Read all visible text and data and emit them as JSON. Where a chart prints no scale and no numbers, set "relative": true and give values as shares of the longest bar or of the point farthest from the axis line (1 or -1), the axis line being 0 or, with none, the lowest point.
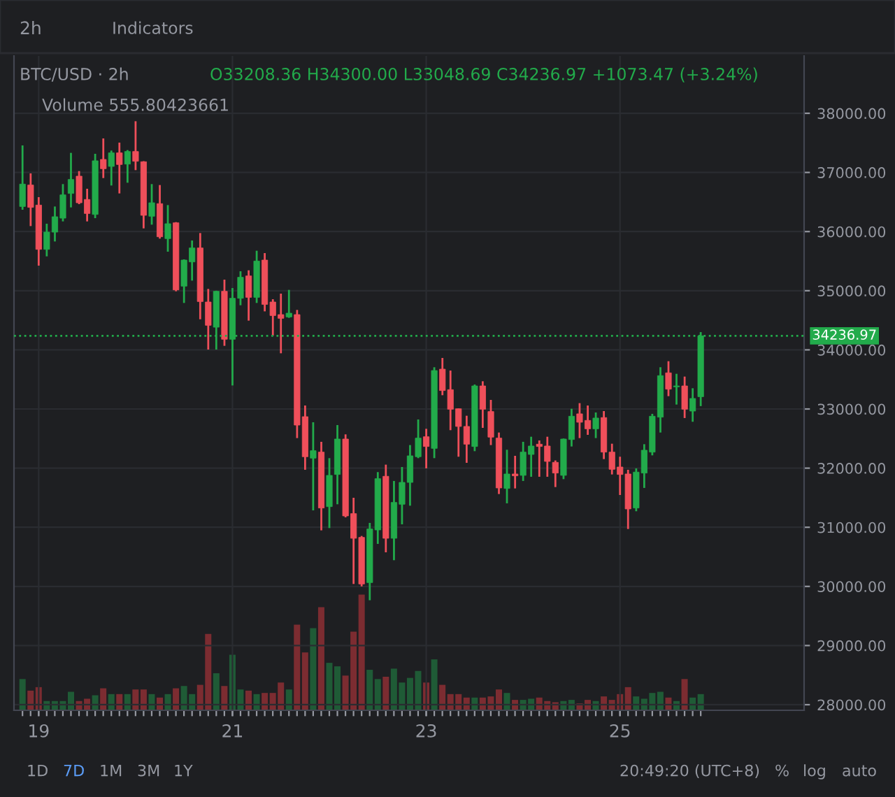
{
  "chart_data": [
    {
      "type": "candlestick",
      "title": "BTC/USD · 2h",
      "subtitle": "O33208.36 H34300.00 L33048.69 C34236.97 +1073.47 (+3.24%)",
      "annotations": [
        "Volume 555.80423661",
        "2h",
        "Indicators",
        "1D",
        "7D",
        "1M",
        "3M",
        "1Y",
        "20:49:20 (UTC+8)",
        "%",
        "log",
        "auto"
      ],
      "x": [
        18.833,
        18.917,
        19,
        19.083,
        19.167,
        19.25,
        19.333,
        19.417,
        19.5,
        19.583,
        19.667,
        19.75,
        19.833,
        19.917,
        20,
        20.083,
        20.167,
        20.25,
        20.333,
        20.417,
        20.5,
        20.583,
        20.667,
        20.75,
        20.833,
        20.917,
        21,
        21.083,
        21.167,
        21.25,
        21.333,
        21.417,
        21.5,
        21.583,
        21.667,
        21.75,
        21.833,
        21.917,
        22,
        22.083,
        22.167,
        22.25,
        22.333,
        22.417,
        22.5,
        22.583,
        22.667,
        22.75,
        22.833,
        22.917,
        23,
        23.083,
        23.167,
        23.25,
        23.333,
        23.417,
        23.5,
        23.583,
        23.667,
        23.75,
        23.833,
        23.917,
        24,
        24.083,
        24.167,
        24.25,
        24.333,
        24.417,
        24.5,
        24.583,
        24.667,
        24.75,
        24.833,
        24.917,
        25,
        25.083,
        25.167,
        25.25,
        25.333,
        25.417,
        25.5,
        25.583,
        25.667,
        25.75,
        25.833
      ],
      "ohlc": [
        [
          36424,
          37457,
          36369,
          36803
        ],
        [
          36787,
          36984,
          36093,
          36409
        ],
        [
          36448,
          36582,
          35424,
          35699
        ],
        [
          35699,
          36133,
          35581,
          35991
        ],
        [
          35991,
          36424,
          35833,
          36251
        ],
        [
          36227,
          36803,
          36172,
          36621
        ],
        [
          36645,
          37331,
          36409,
          36881
        ],
        [
          36937,
          37023,
          36464,
          36487
        ],
        [
          36543,
          36724,
          36172,
          36306
        ],
        [
          36290,
          37315,
          36227,
          37197
        ],
        [
          37220,
          37575,
          36905,
          37063
        ],
        [
          37102,
          37370,
          36779,
          37331
        ],
        [
          37331,
          37504,
          36645,
          37134
        ],
        [
          37141,
          37378,
          36826,
          37354
        ],
        [
          37354,
          37866,
          37039,
          37189
        ],
        [
          37181,
          37190,
          36054,
          36275
        ],
        [
          36259,
          36803,
          36117,
          36487
        ],
        [
          36472,
          36787,
          35881,
          35912
        ],
        [
          35881,
          36448,
          35660,
          36133
        ],
        [
          36149,
          36160,
          34990,
          35014
        ],
        [
          35077,
          35530,
          34793,
          35518
        ],
        [
          35487,
          35849,
          35171,
          35723
        ],
        [
          35723,
          35975,
          34517,
          34817
        ],
        [
          34809,
          35030,
          34005,
          34415
        ],
        [
          34383,
          35000,
          34005,
          34990
        ],
        [
          34990,
          35187,
          34068,
          34179
        ],
        [
          34179,
          35045,
          33398,
          34872
        ],
        [
          34872,
          35329,
          34754,
          35227
        ],
        [
          35250,
          35345,
          34494,
          34888
        ],
        [
          34888,
          35676,
          34793,
          35502
        ],
        [
          35518,
          35636,
          34651,
          34769
        ],
        [
          34809,
          34856,
          34241,
          34580
        ],
        [
          34596,
          34951,
          33942,
          34533
        ],
        [
          34557,
          35014,
          34541,
          34620
        ],
        [
          34596,
          34675,
          32508,
          32728
        ],
        [
          32870,
          33059,
          31972,
          32193
        ],
        [
          32169,
          32776,
          31286,
          32295
        ],
        [
          32271,
          32445,
          30948,
          31326
        ],
        [
          31349,
          32169,
          30987,
          31877
        ],
        [
          31893,
          32728,
          31389,
          32492
        ],
        [
          32492,
          32571,
          31168,
          31192
        ],
        [
          31231,
          31499,
          30041,
          30814
        ],
        [
          30829,
          30853,
          30000,
          30041
        ],
        [
          30065,
          31074,
          29766,
          30971
        ],
        [
          30955,
          31933,
          30719,
          31822
        ],
        [
          31862,
          32059,
          30577,
          30814
        ],
        [
          30814,
          31783,
          30443,
          31420
        ],
        [
          31389,
          32019,
          31050,
          31759
        ],
        [
          31759,
          32390,
          31365,
          32208
        ],
        [
          32193,
          32823,
          32169,
          32508
        ],
        [
          32531,
          32665,
          31996,
          32366
        ],
        [
          32334,
          33706,
          32169,
          33650
        ],
        [
          33674,
          33863,
          33233,
          33312
        ],
        [
          33327,
          33650,
          32642,
          32996
        ],
        [
          33004,
          33010,
          32193,
          32705
        ],
        [
          32705,
          32886,
          32090,
          32405
        ],
        [
          32366,
          33414,
          32287,
          33390
        ],
        [
          33390,
          33469,
          32681,
          32996
        ],
        [
          32957,
          33154,
          32390,
          32524
        ],
        [
          32508,
          32602,
          31562,
          31665
        ],
        [
          31657,
          32311,
          31405,
          31901
        ],
        [
          31901,
          32208,
          31657,
          31870
        ],
        [
          31878,
          32445,
          31783,
          32271
        ],
        [
          32232,
          32531,
          31854,
          32374
        ],
        [
          32405,
          32468,
          31854,
          32366
        ],
        [
          32374,
          32531,
          31854,
          32114
        ],
        [
          32098,
          32130,
          31680,
          31917
        ],
        [
          31878,
          32500,
          31814,
          32492
        ],
        [
          32484,
          33004,
          32366,
          32878
        ],
        [
          32918,
          33099,
          32508,
          32776
        ],
        [
          32807,
          33059,
          32563,
          32665
        ],
        [
          32665,
          32941,
          32508,
          32847
        ],
        [
          32855,
          32965,
          32153,
          32271
        ],
        [
          32271,
          32413,
          31893,
          31980
        ],
        [
          32019,
          32193,
          31546,
          31893
        ],
        [
          31901,
          31972,
          30971,
          31310
        ],
        [
          31326,
          31996,
          31271,
          31933
        ],
        [
          31917,
          32405,
          31665,
          32303
        ],
        [
          32271,
          32918,
          32216,
          32878
        ],
        [
          32862,
          33706,
          32602,
          33564
        ],
        [
          33611,
          33808,
          33217,
          33335
        ],
        [
          33375,
          33595,
          33075,
          33390
        ],
        [
          33390,
          33548,
          32847,
          32996
        ],
        [
          32965,
          33351,
          32784,
          33178
        ],
        [
          33208.36,
          34300.0,
          33048.69,
          34236.97
        ]
      ],
      "colors": [
        "#22ab4b",
        "#ef4f5a",
        "#ef4f5a",
        "#22ab4b",
        "#22ab4b",
        "#22ab4b",
        "#22ab4b",
        "#ef4f5a",
        "#ef4f5a",
        "#22ab4b",
        "#ef4f5a",
        "#22ab4b",
        "#ef4f5a",
        "#22ab4b",
        "#ef4f5a",
        "#ef4f5a",
        "#22ab4b",
        "#ef4f5a",
        "#22ab4b",
        "#ef4f5a",
        "#22ab4b",
        "#22ab4b",
        "#ef4f5a",
        "#ef4f5a",
        "#22ab4b",
        "#ef4f5a",
        "#22ab4b",
        "#22ab4b",
        "#ef4f5a",
        "#22ab4b",
        "#ef4f5a",
        "#ef4f5a",
        "#ef4f5a",
        "#22ab4b",
        "#ef4f5a",
        "#ef4f5a",
        "#22ab4b",
        "#ef4f5a",
        "#22ab4b",
        "#22ab4b",
        "#ef4f5a",
        "#ef4f5a",
        "#ef4f5a",
        "#22ab4b",
        "#22ab4b",
        "#ef4f5a",
        "#22ab4b",
        "#22ab4b",
        "#22ab4b",
        "#22ab4b",
        "#ef4f5a",
        "#22ab4b",
        "#ef4f5a",
        "#ef4f5a",
        "#ef4f5a",
        "#ef4f5a",
        "#22ab4b",
        "#ef4f5a",
        "#ef4f5a",
        "#ef4f5a",
        "#22ab4b",
        "#ef4f5a",
        "#22ab4b",
        "#22ab4b",
        "#ef4f5a",
        "#ef4f5a",
        "#ef4f5a",
        "#22ab4b",
        "#22ab4b",
        "#ef4f5a",
        "#ef4f5a",
        "#22ab4b",
        "#ef4f5a",
        "#ef4f5a",
        "#ef4f5a",
        "#ef4f5a",
        "#22ab4b",
        "#22ab4b",
        "#22ab4b",
        "#22ab4b",
        "#ef4f5a",
        "#22ab4b",
        "#ef4f5a",
        "#22ab4b",
        "#22ab4b"
      ],
      "xlim": [
        18.745,
        26.9
      ],
      "xticks": [
        19,
        21,
        23,
        25
      ],
      "ylim": [
        27905,
        38970
      ],
      "yticks": [
        {
          "value": 28000,
          "label": "28000.00"
        },
        {
          "value": 29000,
          "label": "29000.00"
        },
        {
          "value": 30000,
          "label": "30000.00"
        },
        {
          "value": 31000,
          "label": "31000.00"
        },
        {
          "value": 32000,
          "label": "32000.00"
        },
        {
          "value": 33000,
          "label": "33000.00"
        },
        {
          "value": 34000,
          "label": "34000.00"
        },
        {
          "value": 35000,
          "label": "35000.00"
        },
        {
          "value": 36000,
          "label": "36000.00"
        },
        {
          "value": 37000,
          "label": "37000.00"
        },
        {
          "value": 38000,
          "label": "38000.00"
        }
      ],
      "ref_lines": [
        {
          "axis": "y",
          "value": 34236.97,
          "label": "34236.97",
          "color": "#22ab4b",
          "line_style": "dotted"
        }
      ],
      "grid": true
    },
    {
      "type": "bar",
      "relative": true,
      "categories": [
        null,
        null,
        null,
        null,
        null,
        null,
        null,
        null,
        null,
        null,
        null,
        null,
        null,
        null,
        null,
        null,
        null,
        null,
        null,
        null,
        null,
        null,
        null,
        null,
        null,
        null,
        null,
        null,
        null,
        null,
        null,
        null,
        null,
        null,
        null,
        null,
        null,
        null,
        null,
        null,
        null,
        null,
        null,
        null,
        null,
        null,
        null,
        null,
        null,
        null,
        null,
        null,
        null,
        null,
        null,
        null,
        null,
        null,
        null,
        null,
        null,
        null,
        null,
        null,
        null,
        null,
        null,
        null,
        null,
        null,
        null,
        null,
        null,
        null,
        null,
        null,
        null,
        null,
        null,
        null,
        null,
        null,
        null,
        null,
        null
      ],
      "values": [
        0.27,
        0.17,
        0.2,
        0.08,
        0.08,
        0.08,
        0.16,
        0.08,
        0.1,
        0.13,
        0.19,
        0.14,
        0.14,
        0.14,
        0.18,
        0.18,
        0.14,
        0.11,
        0.14,
        0.19,
        0.21,
        0.14,
        0.22,
        0.66,
        0.32,
        0.21,
        0.48,
        0.18,
        0.17,
        0.14,
        0.15,
        0.15,
        0.24,
        0.18,
        0.74,
        0.5,
        0.71,
        0.89,
        0.41,
        0.38,
        0.3,
        0.68,
        1,
        0.35,
        0.27,
        0.29,
        0.36,
        0.24,
        0.28,
        0.34,
        0.24,
        0.44,
        0.22,
        0.14,
        0.14,
        0.11,
        0.11,
        0.11,
        0.12,
        0.18,
        0.15,
        0.09,
        0.09,
        0.1,
        0.11,
        0.08,
        0.07,
        0.08,
        0.09,
        0.06,
        0.09,
        0.08,
        0.12,
        0.09,
        0.14,
        0.2,
        0.12,
        0.1,
        0.15,
        0.16,
        0.11,
        0.08,
        0.27,
        0.11,
        0.14
      ],
      "colors": [
        "#1f5b36",
        "#7c2c31",
        "#7c2c31",
        "#1f5b36",
        "#1f5b36",
        "#1f5b36",
        "#1f5b36",
        "#7c2c31",
        "#7c2c31",
        "#1f5b36",
        "#7c2c31",
        "#1f5b36",
        "#7c2c31",
        "#1f5b36",
        "#7c2c31",
        "#7c2c31",
        "#1f5b36",
        "#7c2c31",
        "#1f5b36",
        "#7c2c31",
        "#1f5b36",
        "#1f5b36",
        "#7c2c31",
        "#7c2c31",
        "#1f5b36",
        "#7c2c31",
        "#1f5b36",
        "#1f5b36",
        "#7c2c31",
        "#1f5b36",
        "#7c2c31",
        "#7c2c31",
        "#7c2c31",
        "#1f5b36",
        "#7c2c31",
        "#7c2c31",
        "#1f5b36",
        "#7c2c31",
        "#1f5b36",
        "#1f5b36",
        "#7c2c31",
        "#7c2c31",
        "#7c2c31",
        "#1f5b36",
        "#1f5b36",
        "#7c2c31",
        "#1f5b36",
        "#1f5b36",
        "#1f5b36",
        "#1f5b36",
        "#7c2c31",
        "#1f5b36",
        "#7c2c31",
        "#7c2c31",
        "#7c2c31",
        "#7c2c31",
        "#1f5b36",
        "#7c2c31",
        "#7c2c31",
        "#7c2c31",
        "#1f5b36",
        "#7c2c31",
        "#1f5b36",
        "#1f5b36",
        "#7c2c31",
        "#7c2c31",
        "#7c2c31",
        "#1f5b36",
        "#1f5b36",
        "#7c2c31",
        "#7c2c31",
        "#1f5b36",
        "#7c2c31",
        "#7c2c31",
        "#7c2c31",
        "#7c2c31",
        "#1f5b36",
        "#1f5b36",
        "#1f5b36",
        "#1f5b36",
        "#7c2c31",
        "#1f5b36",
        "#7c2c31",
        "#1f5b36",
        "#1f5b36"
      ]
    }
  ]
}
